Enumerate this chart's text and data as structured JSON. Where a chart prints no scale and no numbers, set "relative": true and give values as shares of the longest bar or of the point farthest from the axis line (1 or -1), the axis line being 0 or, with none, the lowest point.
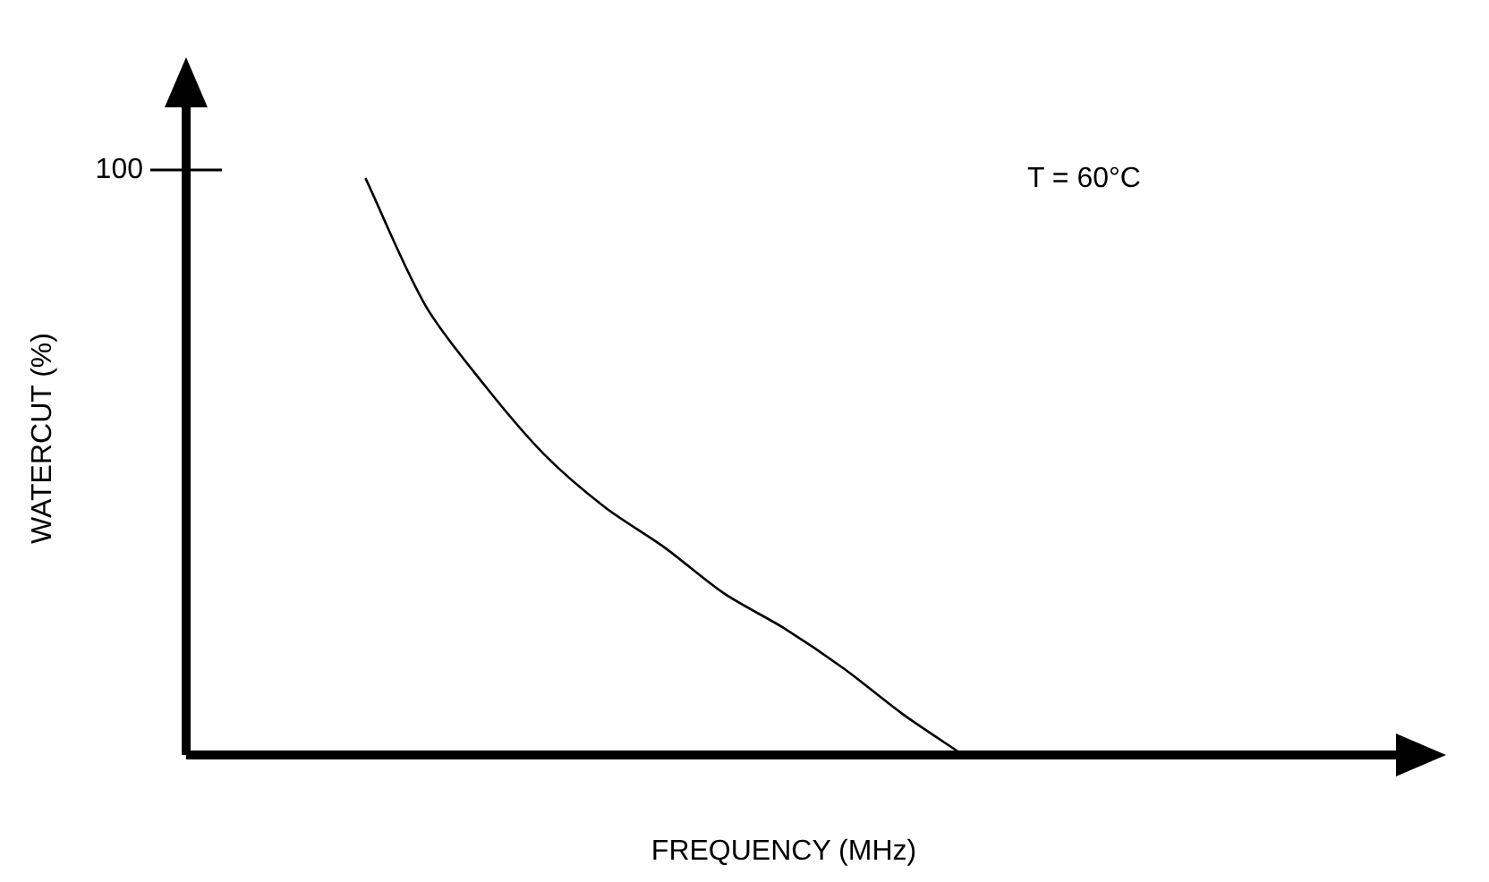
{
  "chart_data": {
    "type": "line",
    "relative": true,
    "xlabel": "FREQUENCY (MHz)",
    "ylabel": "WATERCUT (%)",
    "annotations": [
      "T = 60°C",
      "100"
    ],
    "categories": [
      null,
      null,
      null,
      null,
      null,
      null,
      null,
      null,
      null,
      null,
      null,
      null,
      null,
      null,
      null,
      null,
      null,
      null,
      null,
      null,
      null
    ],
    "series": [
      {
        "color": "#000000",
        "values": [
          null,
          null,
          null,
          1.0,
          0.78,
          0.64,
          0.52,
          0.43,
          0.36,
          0.28,
          0.22,
          0.15,
          0.07,
          0,
          null,
          null,
          null,
          null,
          null,
          null,
          null
        ]
      }
    ]
  }
}
